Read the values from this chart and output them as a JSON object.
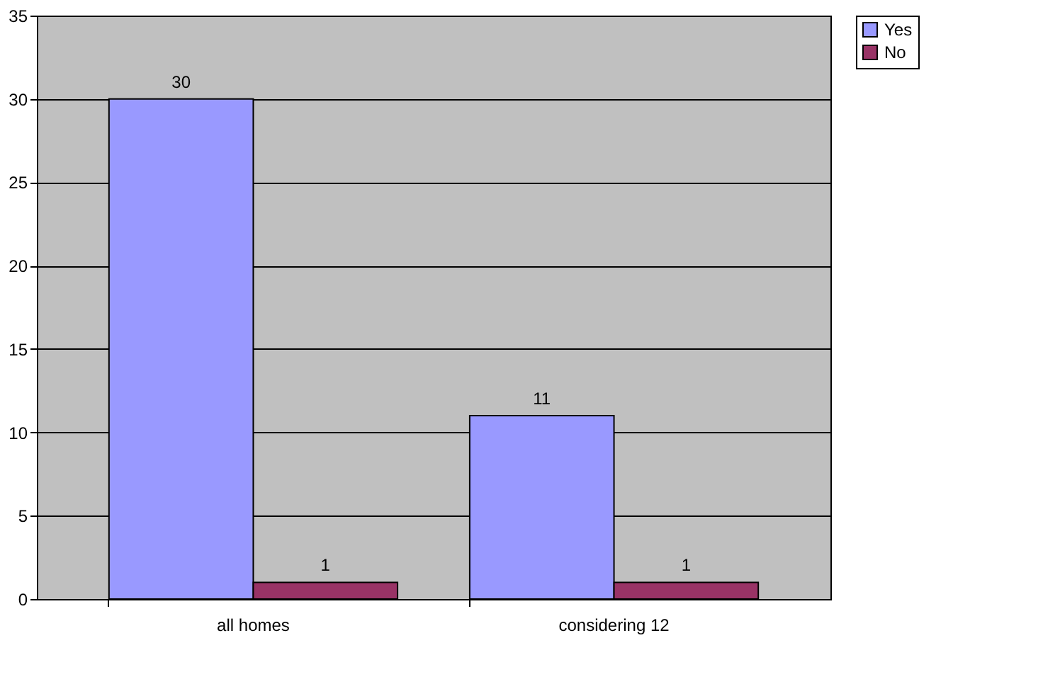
{
  "chart_data": {
    "type": "bar",
    "categories": [
      "all homes",
      "considering 12"
    ],
    "series": [
      {
        "name": "Yes",
        "color": "#9999ff",
        "values": [
          30,
          11
        ]
      },
      {
        "name": "No",
        "color": "#993366",
        "values": [
          1,
          1
        ]
      }
    ],
    "ylim": [
      0,
      35
    ],
    "yticks": [
      0,
      5,
      10,
      15,
      20,
      25,
      30,
      35
    ],
    "grid": "y",
    "legend": "right",
    "data_labels": true
  }
}
